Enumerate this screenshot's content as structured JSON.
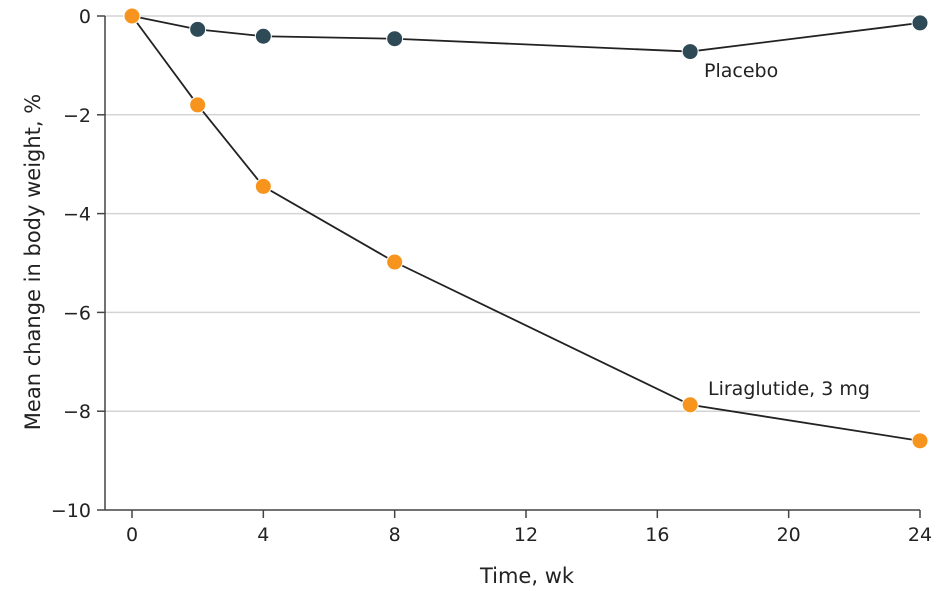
{
  "chart_data": {
    "type": "line",
    "xlabel": "Time, wk",
    "ylabel": "Mean change in body weight, %",
    "xlim": [
      0,
      24
    ],
    "ylim": [
      -10,
      0
    ],
    "xticks": [
      0,
      4,
      8,
      12,
      16,
      20,
      24
    ],
    "yticks": [
      0,
      -2,
      -4,
      -6,
      -8,
      -10
    ],
    "ytick_labels": [
      "0",
      "−2",
      "−4",
      "−6",
      "−8",
      "−10"
    ],
    "grid": "horizontal",
    "series": [
      {
        "name": "Placebo",
        "color": "#2d4a56",
        "x": [
          0,
          2,
          4,
          8,
          17,
          24
        ],
        "y": [
          0,
          -0.27,
          -0.41,
          -0.46,
          -0.72,
          -0.14
        ]
      },
      {
        "name": "Liraglutide, 3 mg",
        "color": "#f7941d",
        "x": [
          0,
          2,
          4,
          8,
          17,
          24
        ],
        "y": [
          0,
          -1.8,
          -3.45,
          -4.98,
          -7.87,
          -8.6
        ]
      }
    ]
  }
}
